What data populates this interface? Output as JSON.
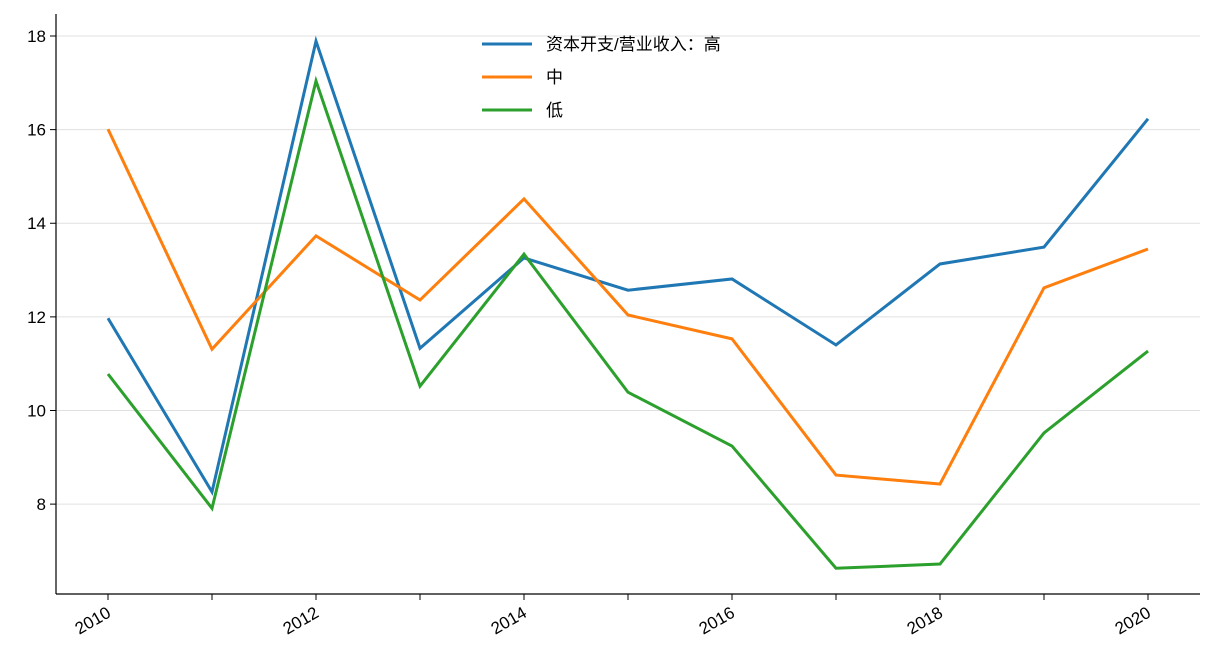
{
  "chart_data": {
    "type": "line",
    "x": [
      2010,
      2011,
      2012,
      2013,
      2014,
      2015,
      2016,
      2017,
      2018,
      2019,
      2020
    ],
    "series": [
      {
        "name": "资本开支/营业收入：高",
        "color": "#1f77b4",
        "values": [
          11.97,
          8.26,
          17.89,
          11.33,
          13.26,
          12.57,
          12.81,
          11.4,
          13.13,
          13.49,
          16.23
        ]
      },
      {
        "name": "中",
        "color": "#ff7f0e",
        "values": [
          16.01,
          11.31,
          13.73,
          12.36,
          14.52,
          12.04,
          11.53,
          8.62,
          8.43,
          12.62,
          13.45
        ]
      },
      {
        "name": "低",
        "color": "#2ca02c",
        "values": [
          10.78,
          7.91,
          17.04,
          10.52,
          13.34,
          10.39,
          9.24,
          6.63,
          6.72,
          9.52,
          11.27
        ]
      }
    ],
    "xlim": [
      2009.5,
      2020.5
    ],
    "xticks": [
      2010,
      2012,
      2014,
      2016,
      2018,
      2020
    ],
    "xminorticks": [
      2011,
      2013,
      2015,
      2017,
      2019
    ],
    "ylim": [
      6.08,
      18.47
    ],
    "yticks": [
      8,
      10,
      12,
      14,
      16,
      18
    ],
    "grid": true,
    "legend": "upper center"
  }
}
